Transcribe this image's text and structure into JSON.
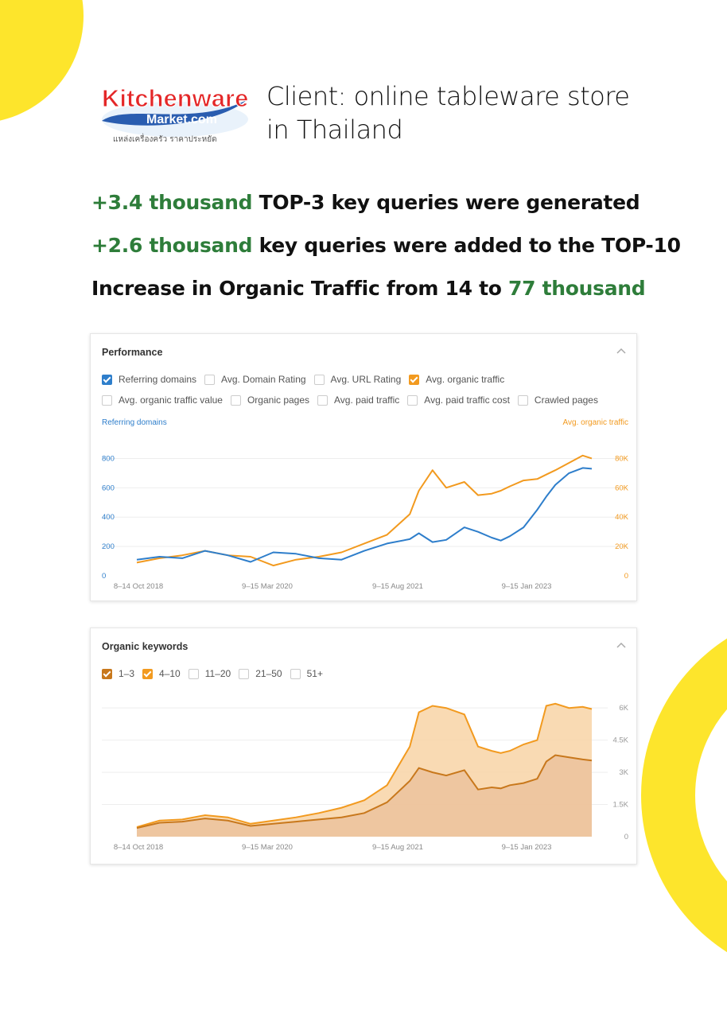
{
  "client": {
    "line1": "Client: online tableware store",
    "line2": "in Thailand",
    "logo": {
      "brand": "Kitchenware",
      "domain": "Market.com",
      "tagline": "แหล่งเครื่องครัว ราคาประหยัด"
    }
  },
  "highlights": [
    {
      "green": "+3.4 thousand",
      "text": " TOP-3 key queries were generated",
      "after": ""
    },
    {
      "green": "+2.6 thousand",
      "text": " key queries were added to the TOP-10",
      "after": ""
    },
    {
      "pre": "Increase in Organic Traffic from 14 to ",
      "green": "77 thousand"
    }
  ],
  "colors": {
    "accent_green": "#2e7d3a",
    "yellow": "#fde52c",
    "blue": "#2e7ecb",
    "orange": "#f29a1f",
    "brown": "#c8781c"
  },
  "performance": {
    "title": "Performance",
    "row1": [
      {
        "label": "Referring domains",
        "checked": true,
        "color": "blue"
      },
      {
        "label": "Avg. Domain Rating",
        "checked": false
      },
      {
        "label": "Avg. URL Rating",
        "checked": false
      },
      {
        "label": "Avg. organic traffic",
        "checked": true,
        "color": "orange"
      }
    ],
    "row2": [
      {
        "label": "Avg. organic traffic value",
        "checked": false
      },
      {
        "label": "Organic pages",
        "checked": false
      },
      {
        "label": "Avg. paid traffic",
        "checked": false
      },
      {
        "label": "Avg. paid traffic cost",
        "checked": false
      },
      {
        "label": "Crawled pages",
        "checked": false
      }
    ]
  },
  "keywords": {
    "title": "Organic keywords",
    "row": [
      {
        "label": "1–3",
        "checked": true,
        "color": "brown"
      },
      {
        "label": "4–10",
        "checked": true,
        "color": "orange"
      },
      {
        "label": "11–20",
        "checked": false
      },
      {
        "label": "21–50",
        "checked": false
      },
      {
        "label": "51+",
        "checked": false
      }
    ]
  },
  "chart_data": [
    {
      "type": "line",
      "left_axis_label": "Referring domains",
      "right_axis_label": "Avg. organic traffic",
      "left_ticks": [
        "0",
        "200",
        "400",
        "600",
        "800"
      ],
      "right_ticks": [
        "0",
        "20K",
        "40K",
        "60K",
        "80K"
      ],
      "left_range": [
        0,
        900
      ],
      "right_range": [
        0,
        90000
      ],
      "x_ticks": [
        "8–14 Oct 2018",
        "9–15 Mar 2020",
        "9–15 Aug 2021",
        "9–15 Jan 2023"
      ],
      "grid": true,
      "x": [
        0,
        0.05,
        0.1,
        0.15,
        0.2,
        0.25,
        0.3,
        0.35,
        0.4,
        0.45,
        0.5,
        0.55,
        0.6,
        0.62,
        0.65,
        0.68,
        0.72,
        0.75,
        0.78,
        0.8,
        0.82,
        0.85,
        0.88,
        0.9,
        0.92,
        0.95,
        0.98,
        1.0
      ],
      "series": [
        {
          "name": "Referring domains",
          "axis": "left",
          "color": "#2e7ecb",
          "values": [
            110,
            130,
            120,
            170,
            140,
            95,
            160,
            150,
            120,
            110,
            170,
            220,
            250,
            290,
            230,
            245,
            330,
            300,
            260,
            240,
            270,
            330,
            450,
            540,
            620,
            700,
            735,
            730
          ]
        },
        {
          "name": "Avg. organic traffic",
          "axis": "left",
          "color": "#f29a1f",
          "values": [
            90,
            120,
            140,
            170,
            140,
            130,
            70,
            110,
            130,
            160,
            220,
            280,
            420,
            580,
            720,
            600,
            640,
            550,
            560,
            580,
            610,
            650,
            660,
            690,
            720,
            770,
            820,
            800
          ]
        }
      ]
    },
    {
      "type": "area",
      "right_ticks": [
        "0",
        "1.5K",
        "3K",
        "4.5K",
        "6K"
      ],
      "right_range": [
        0,
        6600
      ],
      "x_ticks": [
        "8–14 Oct 2018",
        "9–15 Mar 2020",
        "9–15 Aug 2021",
        "9–15 Jan 2023"
      ],
      "grid": true,
      "x": [
        0,
        0.05,
        0.1,
        0.15,
        0.2,
        0.25,
        0.3,
        0.35,
        0.4,
        0.45,
        0.5,
        0.55,
        0.6,
        0.62,
        0.65,
        0.68,
        0.72,
        0.75,
        0.78,
        0.8,
        0.82,
        0.85,
        0.88,
        0.9,
        0.92,
        0.95,
        0.98,
        1.0
      ],
      "series": [
        {
          "name": "1–3",
          "color": "#c8781c",
          "values": [
            400,
            650,
            700,
            850,
            750,
            500,
            600,
            700,
            800,
            900,
            1100,
            1600,
            2600,
            3200,
            3000,
            2850,
            3100,
            2200,
            2300,
            2250,
            2400,
            2500,
            2700,
            3500,
            3800,
            3700,
            3600,
            3550
          ]
        },
        {
          "name": "4–10",
          "color": "#f29a1f",
          "values": [
            450,
            750,
            800,
            1000,
            900,
            600,
            750,
            900,
            1100,
            1350,
            1700,
            2400,
            4200,
            5800,
            6100,
            6000,
            5700,
            4200,
            4000,
            3900,
            4000,
            4300,
            4500,
            6100,
            6200,
            6000,
            6050,
            5950
          ]
        }
      ]
    }
  ]
}
